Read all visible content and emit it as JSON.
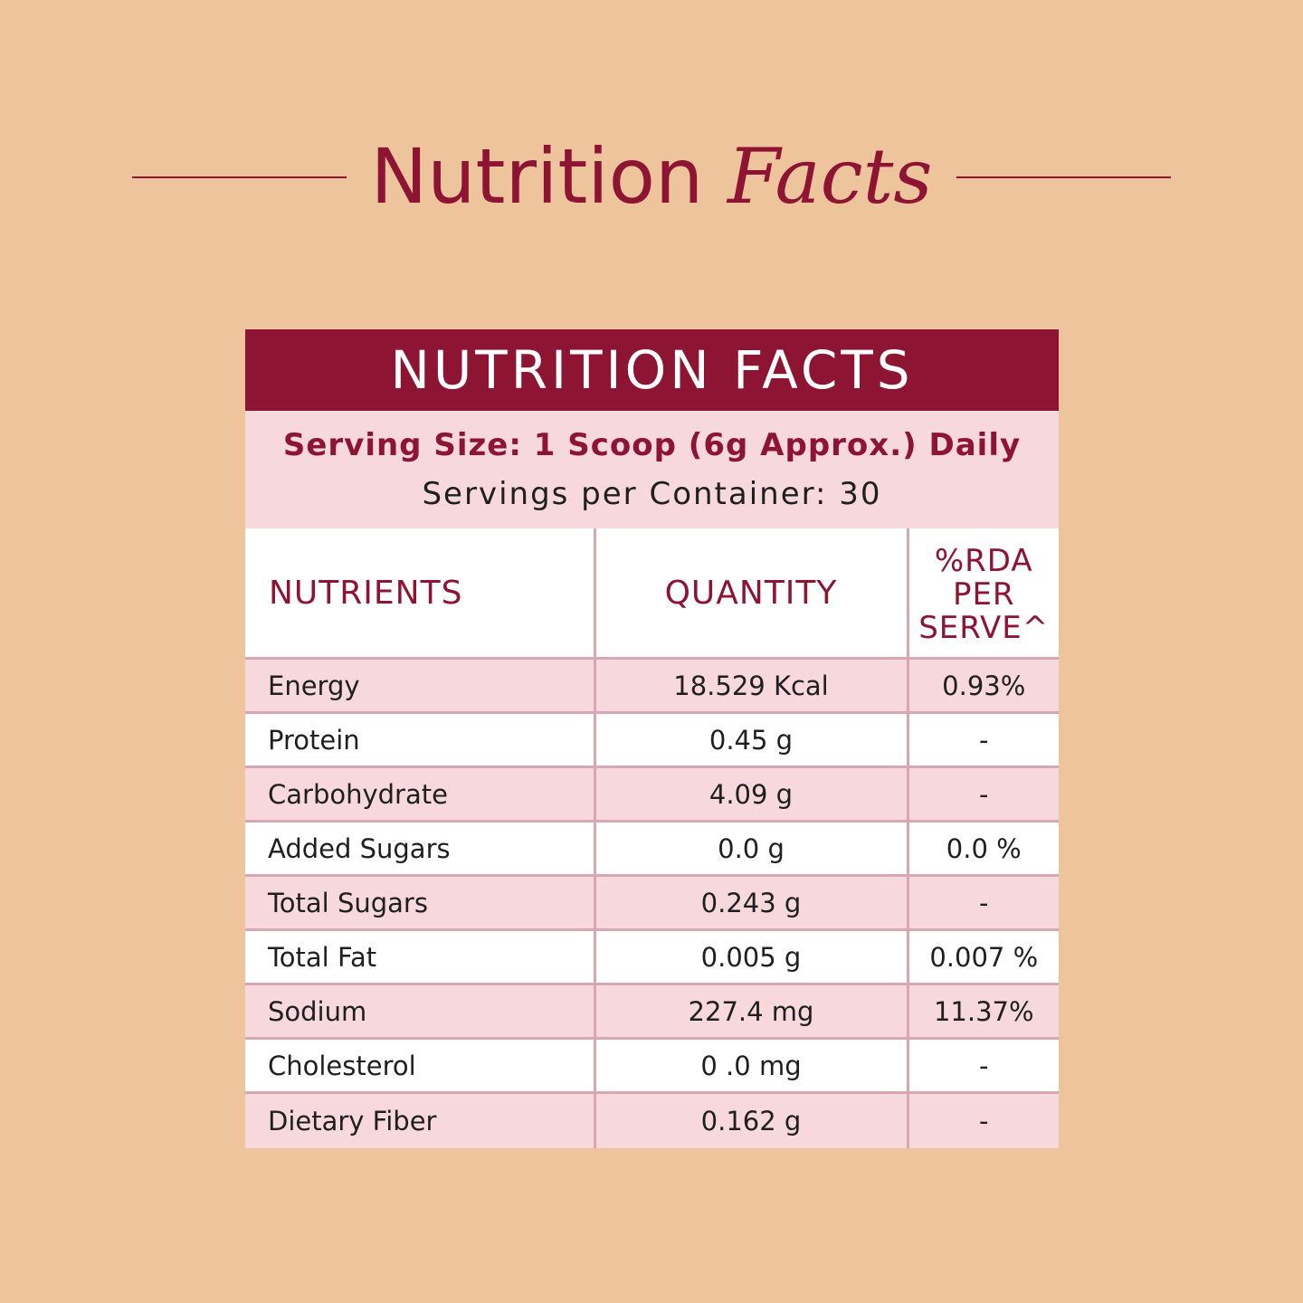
{
  "hero": {
    "title_part1": "Nutrition",
    "title_part2": "Facts"
  },
  "panel": {
    "header": "NUTRITION FACTS",
    "serving_size": "Serving Size: 1 Scoop (6g Approx.) Daily",
    "servings_per_container": "Servings per Container: 30"
  },
  "table": {
    "headers": {
      "nutrients": "NUTRIENTS",
      "quantity": "QUANTITY",
      "rda_line1": "%RDA",
      "rda_line2": "PER",
      "rda_line3": "SERVE^"
    },
    "rows": [
      {
        "nutrient": "Energy",
        "quantity": "18.529 Kcal",
        "rda": "0.93%"
      },
      {
        "nutrient": "Protein",
        "quantity": "0.45 g",
        "rda": "-"
      },
      {
        "nutrient": "Carbohydrate",
        "quantity": "4.09 g",
        "rda": "-"
      },
      {
        "nutrient": "Added Sugars",
        "quantity": "0.0 g",
        "rda": "0.0 %"
      },
      {
        "nutrient": "Total Sugars",
        "quantity": "0.243 g",
        "rda": "-"
      },
      {
        "nutrient": "Total Fat",
        "quantity": "0.005 g",
        "rda": "0.007 %"
      },
      {
        "nutrient": "Sodium",
        "quantity": "227.4 mg",
        "rda": "11.37%"
      },
      {
        "nutrient": "Cholesterol",
        "quantity": "0 .0 mg",
        "rda": "-"
      },
      {
        "nutrient": "Dietary Fiber",
        "quantity": "0.162 g",
        "rda": "-"
      }
    ]
  },
  "colors": {
    "background": "#EEC49C",
    "brand": "#8E1433",
    "row_pink": "#F6D8DD",
    "row_white": "#FFFFFF",
    "grid": "#D9A7B2"
  }
}
